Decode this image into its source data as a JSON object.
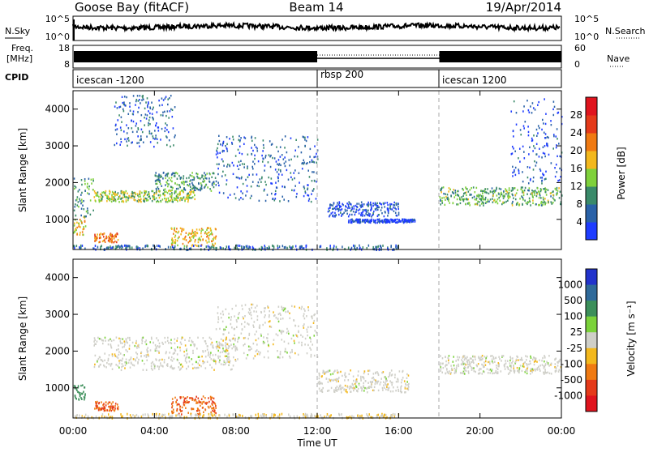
{
  "header": {
    "station": "Goose Bay (fitACF)",
    "beam": "Beam 14",
    "date": "19/Apr/2014"
  },
  "noise_panel": {
    "left_label": "N.Sky",
    "right_label": "N.Search",
    "left_ticks": [
      "10^5",
      "10^0"
    ],
    "right_ticks": [
      "10^5",
      "10^0"
    ]
  },
  "freq_panel": {
    "left_label_1": "Freq.",
    "left_label_2": "[MHz]",
    "right_label": "Nave",
    "left_ticks": [
      "18",
      "8"
    ],
    "right_ticks": [
      "60",
      "0"
    ]
  },
  "cpid_panel": {
    "label": "CPID",
    "segments": [
      {
        "name": "icescan -1200",
        "start": "00:00",
        "end": "12:00"
      },
      {
        "name": "rbsp 200",
        "start": "12:00",
        "end": "18:00"
      },
      {
        "name": "icescan 1200",
        "start": "18:00",
        "end": "24:00"
      }
    ]
  },
  "x_axis": {
    "label": "Time UT",
    "ticks": [
      "00:00",
      "04:00",
      "08:00",
      "12:00",
      "16:00",
      "20:00",
      "00:00"
    ]
  },
  "power_panel": {
    "ylabel": "Slant Range [km]",
    "yticks": [
      "1000",
      "2000",
      "3000",
      "4000"
    ],
    "colorbar_label": "Power [dB]",
    "colorbar_ticks": [
      "4",
      "8",
      "12",
      "16",
      "20",
      "24",
      "28"
    ],
    "colors": [
      "#1e3cff",
      "#2a62a8",
      "#3a8a6a",
      "#7fd13b",
      "#f3b81d",
      "#f07a12",
      "#e53a1a",
      "#e0141e"
    ]
  },
  "velocity_panel": {
    "ylabel": "Slant Range [km]",
    "yticks": [
      "1000",
      "2000",
      "3000",
      "4000"
    ],
    "colorbar_label": "Velocity [m s⁻¹]",
    "colorbar_ticks": [
      "1000",
      "500",
      "100",
      "25",
      "-25",
      "-100",
      "-500",
      "-1000"
    ],
    "colors": [
      "#2233cc",
      "#2f6a9a",
      "#3c8f5a",
      "#7bd23a",
      "#cfcfc8",
      "#f3b81d",
      "#f07a12",
      "#e53a1a",
      "#e0141e"
    ]
  },
  "chart_data": [
    {
      "type": "heatmap",
      "title": "Goose Bay (fitACF) Beam 14 19/Apr/2014",
      "xlabel": "Time UT",
      "ylabel": "Slant Range [km]",
      "xlim": [
        "00:00",
        "24:00"
      ],
      "ylim": [
        180,
        4500
      ],
      "colorbar": {
        "label": "Power [dB]",
        "ticks": [
          4,
          8,
          12,
          16,
          20,
          24,
          28
        ]
      },
      "scatter_regions": [
        {
          "start_hr": 0.0,
          "end_hr": 0.6,
          "range_km": [
            600,
            1100
          ],
          "power_db": 20
        },
        {
          "start_hr": 0.0,
          "end_hr": 1.0,
          "range_km": [
            1100,
            2200
          ],
          "power_db": 12
        },
        {
          "start_hr": 1.0,
          "end_hr": 2.2,
          "range_km": [
            400,
            650
          ],
          "power_db": 24
        },
        {
          "start_hr": 1.0,
          "end_hr": 6.0,
          "range_km": [
            1500,
            1800
          ],
          "power_db": 16
        },
        {
          "start_hr": 2.0,
          "end_hr": 5.0,
          "range_km": [
            3000,
            4400
          ],
          "power_db": 8
        },
        {
          "start_hr": 4.0,
          "end_hr": 7.0,
          "range_km": [
            1800,
            2300
          ],
          "power_db": 12
        },
        {
          "start_hr": 4.8,
          "end_hr": 7.0,
          "range_km": [
            300,
            800
          ],
          "power_db": 20
        },
        {
          "start_hr": 7.0,
          "end_hr": 12.0,
          "range_km": [
            1500,
            3300
          ],
          "power_db": 8
        },
        {
          "start_hr": 12.5,
          "end_hr": 16.0,
          "range_km": [
            1100,
            1500
          ],
          "power_db": 6
        },
        {
          "start_hr": 13.5,
          "end_hr": 16.8,
          "range_km": [
            930,
            1030
          ],
          "power_db": 4
        },
        {
          "start_hr": 18.0,
          "end_hr": 24.0,
          "range_km": [
            1400,
            1900
          ],
          "power_db": 14
        },
        {
          "start_hr": 21.5,
          "end_hr": 24.0,
          "range_km": [
            2000,
            4300
          ],
          "power_db": 6
        }
      ]
    },
    {
      "type": "heatmap",
      "title": "",
      "xlabel": "Time UT",
      "ylabel": "Slant Range [km]",
      "xlim": [
        "00:00",
        "24:00"
      ],
      "ylim": [
        180,
        4500
      ],
      "colorbar": {
        "label": "Velocity [m s⁻¹]",
        "ticks": [
          1000,
          500,
          100,
          25,
          -25,
          -100,
          -500,
          -1000
        ]
      },
      "scatter_regions": [
        {
          "start_hr": 0.0,
          "end_hr": 0.6,
          "range_km": [
            700,
            1100
          ],
          "velocity_ms": 100
        },
        {
          "start_hr": 1.0,
          "end_hr": 2.2,
          "range_km": [
            400,
            650
          ],
          "velocity_ms": -300
        },
        {
          "start_hr": 1.0,
          "end_hr": 8.0,
          "range_km": [
            1500,
            2400
          ],
          "velocity_ms": 0
        },
        {
          "start_hr": 4.8,
          "end_hr": 7.0,
          "range_km": [
            300,
            800
          ],
          "velocity_ms": -300
        },
        {
          "start_hr": 7.0,
          "end_hr": 12.0,
          "range_km": [
            1800,
            3300
          ],
          "velocity_ms": 0
        },
        {
          "start_hr": 12.0,
          "end_hr": 16.5,
          "range_km": [
            900,
            1500
          ],
          "velocity_ms": 0
        },
        {
          "start_hr": 18.0,
          "end_hr": 24.0,
          "range_km": [
            1400,
            1900
          ],
          "velocity_ms": 0
        }
      ]
    }
  ]
}
